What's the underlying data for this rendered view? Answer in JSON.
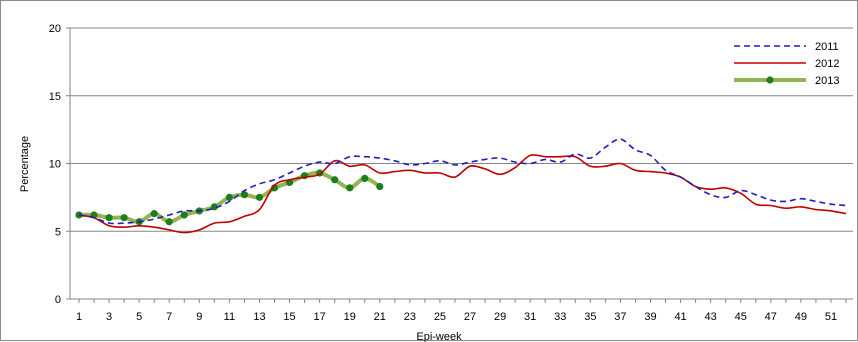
{
  "chart_data": {
    "type": "line",
    "title": "",
    "xlabel": "Epi-week",
    "ylabel": "Percentage",
    "xlim": [
      1,
      52
    ],
    "ylim": [
      0,
      20
    ],
    "y_ticks": [
      0,
      5,
      10,
      15,
      20
    ],
    "x_ticks": [
      1,
      3,
      5,
      7,
      9,
      11,
      13,
      15,
      17,
      19,
      21,
      23,
      25,
      27,
      29,
      31,
      33,
      35,
      37,
      39,
      41,
      43,
      45,
      47,
      49,
      51
    ],
    "grid": "horizontal",
    "legend_position": "top-right",
    "series": [
      {
        "name": "2011",
        "color": "#1f1fbf",
        "style": "dashed",
        "x": [
          1,
          2,
          3,
          4,
          5,
          6,
          7,
          8,
          9,
          10,
          11,
          12,
          13,
          14,
          15,
          16,
          17,
          18,
          19,
          20,
          21,
          22,
          23,
          24,
          25,
          26,
          27,
          28,
          29,
          30,
          31,
          32,
          33,
          34,
          35,
          36,
          37,
          38,
          39,
          40,
          41,
          42,
          43,
          44,
          45,
          46,
          47,
          48,
          49,
          50,
          51,
          52
        ],
        "values": [
          6.2,
          6.0,
          5.6,
          5.6,
          5.7,
          5.9,
          6.2,
          6.5,
          6.5,
          6.7,
          7.2,
          8.0,
          8.5,
          8.8,
          9.3,
          9.8,
          10.1,
          10.0,
          10.5,
          10.5,
          10.4,
          10.2,
          9.9,
          10.0,
          10.2,
          9.9,
          10.1,
          10.3,
          10.4,
          10.1,
          10.0,
          10.3,
          10.1,
          10.7,
          10.4,
          11.2,
          11.8,
          11.0,
          10.6,
          9.5,
          9.0,
          8.3,
          7.7,
          7.5,
          8.0,
          7.7,
          7.3,
          7.2,
          7.4,
          7.2,
          7.0,
          6.9
        ]
      },
      {
        "name": "2012",
        "color": "#c00000",
        "style": "solid",
        "x": [
          1,
          2,
          3,
          4,
          5,
          6,
          7,
          8,
          9,
          10,
          11,
          12,
          13,
          14,
          15,
          16,
          17,
          18,
          19,
          20,
          21,
          22,
          23,
          24,
          25,
          26,
          27,
          28,
          29,
          30,
          31,
          32,
          33,
          34,
          35,
          36,
          37,
          38,
          39,
          40,
          41,
          42,
          43,
          44,
          45,
          46,
          47,
          48,
          49,
          50,
          51,
          52
        ],
        "values": [
          6.2,
          6.0,
          5.4,
          5.3,
          5.4,
          5.3,
          5.1,
          4.9,
          5.1,
          5.6,
          5.7,
          6.1,
          6.6,
          8.4,
          8.8,
          9.0,
          9.2,
          10.2,
          9.8,
          9.9,
          9.3,
          9.4,
          9.5,
          9.3,
          9.3,
          9.0,
          9.8,
          9.6,
          9.2,
          9.7,
          10.6,
          10.5,
          10.5,
          10.5,
          9.8,
          9.8,
          10.0,
          9.5,
          9.4,
          9.3,
          9.0,
          8.3,
          8.1,
          8.2,
          7.8,
          7.0,
          6.9,
          6.7,
          6.8,
          6.6,
          6.5,
          6.3
        ]
      },
      {
        "name": "2013",
        "color": "#92b550",
        "marker_color": "#1e7d1e",
        "style": "solid-marker",
        "x": [
          1,
          2,
          3,
          4,
          5,
          6,
          7,
          8,
          9,
          10,
          11,
          12,
          13,
          14,
          15,
          16,
          17,
          18,
          19,
          20,
          21
        ],
        "values": [
          6.2,
          6.2,
          6.0,
          6.0,
          5.7,
          6.3,
          5.7,
          6.2,
          6.5,
          6.8,
          7.5,
          7.7,
          7.5,
          8.2,
          8.6,
          9.1,
          9.3,
          8.8,
          8.2,
          8.9,
          8.3
        ]
      }
    ]
  }
}
